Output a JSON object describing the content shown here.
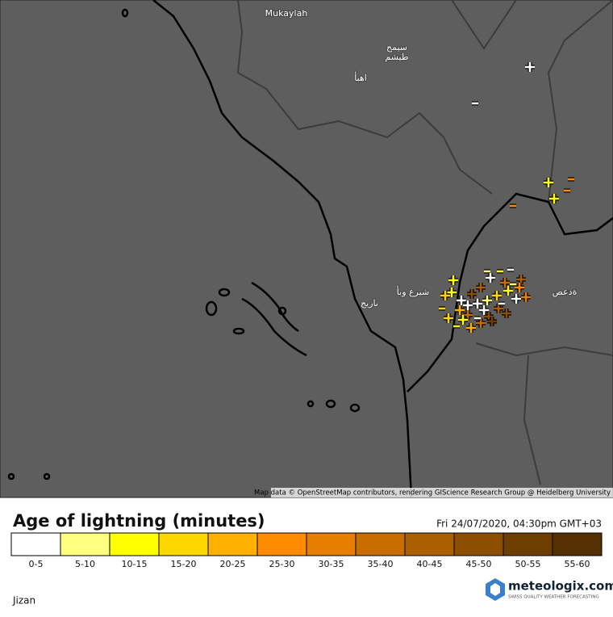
{
  "map": {
    "place_labels": [
      {
        "text": "Mukaylah"
      },
      {
        "text": "سيمح"
      },
      {
        "text": "طيشم"
      },
      {
        "text": "اهبأ"
      },
      {
        "text": "شيرع وبأ"
      },
      {
        "text": "نازيج"
      },
      {
        "text": "ةدعص"
      }
    ],
    "attribution": "Map data © OpenStreetMap contributors, rendering GIScience Research Group @ Heidelberg University"
  },
  "legend": {
    "title": "Age of lightning (minutes)",
    "timestamp": "Fri 24/07/2020, 04:30pm GMT+03",
    "bins": [
      {
        "label": "0-5",
        "color": "#ffffff"
      },
      {
        "label": "5-10",
        "color": "#ffff80"
      },
      {
        "label": "10-15",
        "color": "#ffff00"
      },
      {
        "label": "15-20",
        "color": "#ffd700"
      },
      {
        "label": "20-25",
        "color": "#ffb000"
      },
      {
        "label": "25-30",
        "color": "#ff8c00"
      },
      {
        "label": "30-35",
        "color": "#e67e00"
      },
      {
        "label": "35-40",
        "color": "#c86e00"
      },
      {
        "label": "40-45",
        "color": "#aa5f00"
      },
      {
        "label": "45-50",
        "color": "#8c4e00"
      },
      {
        "label": "50-55",
        "color": "#6e3d00"
      },
      {
        "label": "55-60",
        "color": "#553000"
      }
    ]
  },
  "brand": {
    "name": "meteologix.com",
    "tagline": "SWISS QUALITY WEATHER FORECASTING"
  },
  "location": "Jizan"
}
